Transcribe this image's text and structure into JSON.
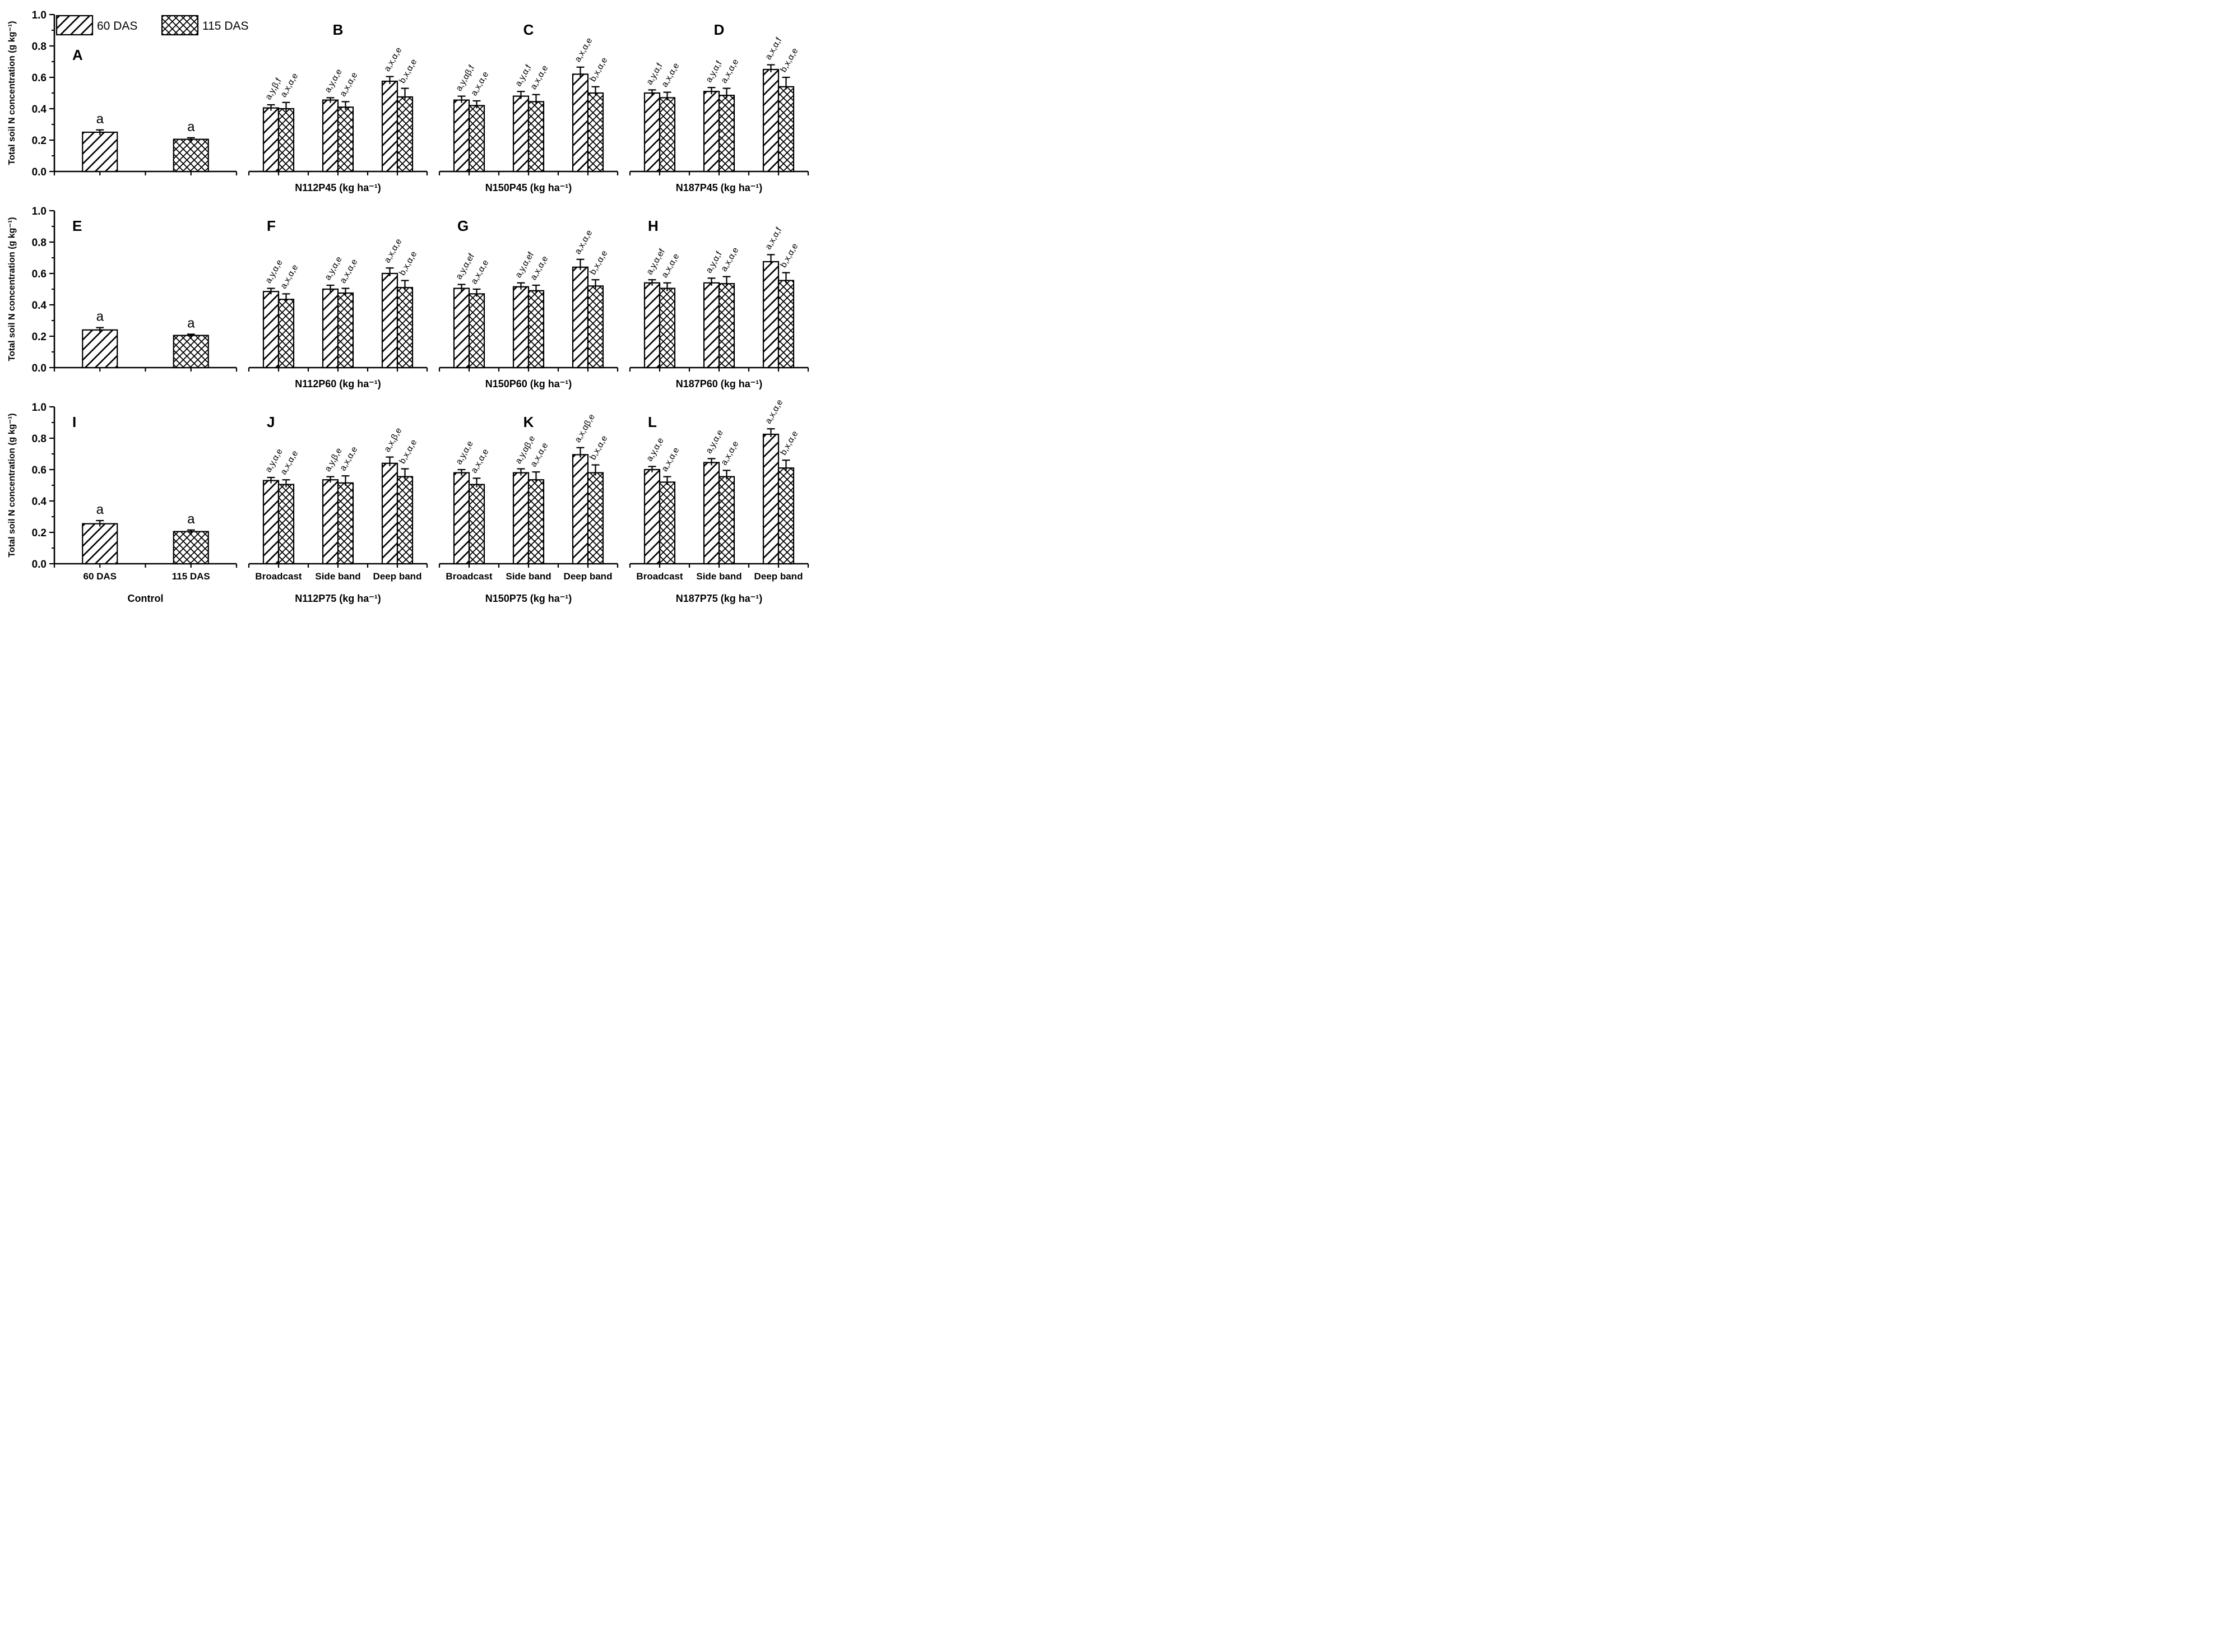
{
  "figure": {
    "ylabel": "Total soil N concentration (g kg⁻¹)",
    "ink_color": "#000000",
    "bg_color": "#ffffff",
    "yaxis": {
      "tick_labels": [
        "0.0",
        "0.2",
        "0.4",
        "0.6",
        "0.8",
        "1.0"
      ],
      "tick_values": [
        0,
        0.2,
        0.4,
        0.6,
        0.8,
        1.0
      ],
      "minor_step": 0.1,
      "ymax": 1.0
    },
    "legend": {
      "items": [
        {
          "label": "60 DAS",
          "pattern": "diagonal-hatch"
        },
        {
          "label": "115 DAS",
          "pattern": "cross-hatch"
        }
      ]
    },
    "series_names": [
      "60 DAS",
      "115 DAS"
    ]
  },
  "chart_data": [
    {
      "type": "bar",
      "letter": "A",
      "letter_align": "left",
      "letter_dy": 45,
      "y_axis": true,
      "tick_labels": false,
      "xlabel": null,
      "legend": true,
      "ylim": [
        0,
        1
      ],
      "groups": [
        {
          "label": "60 DAS",
          "bars": [
            {
              "series": "60 DAS",
              "value": 0.25,
              "error": 0.015,
              "annotation": "a"
            }
          ]
        },
        {
          "label": "115 DAS",
          "bars": [
            {
              "series": "115 DAS",
              "value": 0.205,
              "error": 0.01,
              "annotation": "a"
            }
          ]
        }
      ]
    },
    {
      "type": "bar",
      "letter": "B",
      "letter_align": "center",
      "letter_dy": 0,
      "y_axis": false,
      "tick_labels": false,
      "xlabel": "N112P45 (kg ha⁻¹)",
      "legend": false,
      "ylim": [
        0,
        1
      ],
      "groups": [
        {
          "label": "Broadcast",
          "bars": [
            {
              "series": "60 DAS",
              "value": 0.405,
              "error": 0.02,
              "annotation": "a,y,β,f"
            },
            {
              "series": "115 DAS",
              "value": 0.4,
              "error": 0.04,
              "annotation": "a,x,α,e"
            }
          ]
        },
        {
          "label": "Side band",
          "bars": [
            {
              "series": "60 DAS",
              "value": 0.455,
              "error": 0.015,
              "annotation": "a,y,α,e"
            },
            {
              "series": "115 DAS",
              "value": 0.41,
              "error": 0.035,
              "annotation": "a,x,α,e"
            }
          ]
        },
        {
          "label": "Deep band",
          "bars": [
            {
              "series": "60 DAS",
              "value": 0.575,
              "error": 0.03,
              "annotation": "a,x,α,e"
            },
            {
              "series": "115 DAS",
              "value": 0.475,
              "error": 0.055,
              "annotation": "b,x,α,e"
            }
          ]
        }
      ]
    },
    {
      "type": "bar",
      "letter": "C",
      "letter_align": "center",
      "letter_dy": 0,
      "y_axis": false,
      "tick_labels": false,
      "xlabel": "N150P45 (kg ha⁻¹)",
      "legend": false,
      "ylim": [
        0,
        1
      ],
      "groups": [
        {
          "label": "Broadcast",
          "bars": [
            {
              "series": "60 DAS",
              "value": 0.455,
              "error": 0.025,
              "annotation": "a,y,αβ,f"
            },
            {
              "series": "115 DAS",
              "value": 0.42,
              "error": 0.03,
              "annotation": "a,x,α,e"
            }
          ]
        },
        {
          "label": "Side band",
          "bars": [
            {
              "series": "60 DAS",
              "value": 0.48,
              "error": 0.03,
              "annotation": "a,y,α,f"
            },
            {
              "series": "115 DAS",
              "value": 0.445,
              "error": 0.045,
              "annotation": "a,x,α,e"
            }
          ]
        },
        {
          "label": "Deep band",
          "bars": [
            {
              "series": "60 DAS",
              "value": 0.62,
              "error": 0.045,
              "annotation": "a,x,α,e"
            },
            {
              "series": "115 DAS",
              "value": 0.5,
              "error": 0.04,
              "annotation": "b,x,α,e"
            }
          ]
        }
      ]
    },
    {
      "type": "bar",
      "letter": "D",
      "letter_align": "center",
      "letter_dy": 0,
      "y_axis": false,
      "tick_labels": false,
      "xlabel": "N187P45 (kg ha⁻¹)",
      "legend": false,
      "ylim": [
        0,
        1
      ],
      "groups": [
        {
          "label": "Broadcast",
          "bars": [
            {
              "series": "60 DAS",
              "value": 0.5,
              "error": 0.02,
              "annotation": "a,y,α,f"
            },
            {
              "series": "115 DAS",
              "value": 0.47,
              "error": 0.035,
              "annotation": "a,x,α,e"
            }
          ]
        },
        {
          "label": "Side band",
          "bars": [
            {
              "series": "60 DAS",
              "value": 0.51,
              "error": 0.025,
              "annotation": "a,y,α,f"
            },
            {
              "series": "115 DAS",
              "value": 0.485,
              "error": 0.045,
              "annotation": "a,x,α,e"
            }
          ]
        },
        {
          "label": "Deep band",
          "bars": [
            {
              "series": "60 DAS",
              "value": 0.65,
              "error": 0.03,
              "annotation": "a,x,α,f"
            },
            {
              "series": "115 DAS",
              "value": 0.54,
              "error": 0.06,
              "annotation": "b,x,α,e"
            }
          ]
        }
      ]
    },
    {
      "type": "bar",
      "letter": "E",
      "letter_align": "left",
      "letter_dy": 0,
      "y_axis": true,
      "tick_labels": false,
      "xlabel": null,
      "legend": false,
      "ylim": [
        0,
        1
      ],
      "groups": [
        {
          "label": "60 DAS",
          "bars": [
            {
              "series": "60 DAS",
              "value": 0.24,
              "error": 0.015,
              "annotation": "a"
            }
          ]
        },
        {
          "label": "115 DAS",
          "bars": [
            {
              "series": "115 DAS",
              "value": 0.205,
              "error": 0.008,
              "annotation": "a"
            }
          ]
        }
      ]
    },
    {
      "type": "bar",
      "letter": "F",
      "letter_align": "left",
      "letter_dy": 0,
      "y_axis": false,
      "tick_labels": false,
      "xlabel": "N112P60 (kg ha⁻¹)",
      "legend": false,
      "ylim": [
        0,
        1
      ],
      "groups": [
        {
          "label": "Broadcast",
          "bars": [
            {
              "series": "60 DAS",
              "value": 0.485,
              "error": 0.02,
              "annotation": "a,y,α,e"
            },
            {
              "series": "115 DAS",
              "value": 0.435,
              "error": 0.035,
              "annotation": "a,x,α,e"
            }
          ]
        },
        {
          "label": "Side band",
          "bars": [
            {
              "series": "60 DAS",
              "value": 0.5,
              "error": 0.025,
              "annotation": "a,y,α,e"
            },
            {
              "series": "115 DAS",
              "value": 0.475,
              "error": 0.03,
              "annotation": "a,x,α,e"
            }
          ]
        },
        {
          "label": "Deep band",
          "bars": [
            {
              "series": "60 DAS",
              "value": 0.6,
              "error": 0.035,
              "annotation": "a,x,α,e"
            },
            {
              "series": "115 DAS",
              "value": 0.51,
              "error": 0.045,
              "annotation": "b,x,α,e"
            }
          ]
        }
      ]
    },
    {
      "type": "bar",
      "letter": "G",
      "letter_align": "left",
      "letter_dy": 0,
      "y_axis": false,
      "tick_labels": false,
      "xlabel": "N150P60 (kg ha⁻¹)",
      "legend": false,
      "ylim": [
        0,
        1
      ],
      "groups": [
        {
          "label": "Broadcast",
          "bars": [
            {
              "series": "60 DAS",
              "value": 0.505,
              "error": 0.025,
              "annotation": "a,y,α,ef"
            },
            {
              "series": "115 DAS",
              "value": 0.47,
              "error": 0.03,
              "annotation": "a,x,α,e"
            }
          ]
        },
        {
          "label": "Side band",
          "bars": [
            {
              "series": "60 DAS",
              "value": 0.515,
              "error": 0.025,
              "annotation": "a,y,α,ef"
            },
            {
              "series": "115 DAS",
              "value": 0.49,
              "error": 0.035,
              "annotation": "a,x,α,e"
            }
          ]
        },
        {
          "label": "Deep band",
          "bars": [
            {
              "series": "60 DAS",
              "value": 0.64,
              "error": 0.05,
              "annotation": "a,x,α,e"
            },
            {
              "series": "115 DAS",
              "value": 0.52,
              "error": 0.04,
              "annotation": "b,x,α,e"
            }
          ]
        }
      ]
    },
    {
      "type": "bar",
      "letter": "H",
      "letter_align": "left",
      "letter_dy": 0,
      "y_axis": false,
      "tick_labels": false,
      "xlabel": "N187P60 (kg ha⁻¹)",
      "legend": false,
      "ylim": [
        0,
        1
      ],
      "groups": [
        {
          "label": "Broadcast",
          "bars": [
            {
              "series": "60 DAS",
              "value": 0.54,
              "error": 0.02,
              "annotation": "a,y,α,ef"
            },
            {
              "series": "115 DAS",
              "value": 0.505,
              "error": 0.035,
              "annotation": "a,x,α,e"
            }
          ]
        },
        {
          "label": "Side band",
          "bars": [
            {
              "series": "60 DAS",
              "value": 0.54,
              "error": 0.03,
              "annotation": "a,y,α,f"
            },
            {
              "series": "115 DAS",
              "value": 0.535,
              "error": 0.045,
              "annotation": "a,x,α,e"
            }
          ]
        },
        {
          "label": "Deep band",
          "bars": [
            {
              "series": "60 DAS",
              "value": 0.675,
              "error": 0.045,
              "annotation": "a,x,α,f"
            },
            {
              "series": "115 DAS",
              "value": 0.555,
              "error": 0.05,
              "annotation": "b,x,α,e"
            }
          ]
        }
      ]
    },
    {
      "type": "bar",
      "letter": "I",
      "letter_align": "left",
      "letter_dy": 0,
      "y_axis": true,
      "tick_labels": true,
      "xlabel": "Control",
      "legend": false,
      "ylim": [
        0,
        1
      ],
      "groups": [
        {
          "label": "60 DAS",
          "bars": [
            {
              "series": "60 DAS",
              "value": 0.255,
              "error": 0.02,
              "annotation": "a"
            }
          ]
        },
        {
          "label": "115 DAS",
          "bars": [
            {
              "series": "115 DAS",
              "value": 0.205,
              "error": 0.01,
              "annotation": "a"
            }
          ]
        }
      ]
    },
    {
      "type": "bar",
      "letter": "J",
      "letter_align": "left",
      "letter_dy": 0,
      "y_axis": false,
      "tick_labels": true,
      "xlabel": "N112P75 (kg ha⁻¹)",
      "legend": false,
      "ylim": [
        0,
        1
      ],
      "groups": [
        {
          "label": "Broadcast",
          "bars": [
            {
              "series": "60 DAS",
              "value": 0.53,
              "error": 0.02,
              "annotation": "a,y,α,e"
            },
            {
              "series": "115 DAS",
              "value": 0.505,
              "error": 0.03,
              "annotation": "a,x,α,e"
            }
          ]
        },
        {
          "label": "Side band",
          "bars": [
            {
              "series": "60 DAS",
              "value": 0.535,
              "error": 0.02,
              "annotation": "a,y,β,e"
            },
            {
              "series": "115 DAS",
              "value": 0.515,
              "error": 0.045,
              "annotation": "a,x,α,e"
            }
          ]
        },
        {
          "label": "Deep band",
          "bars": [
            {
              "series": "60 DAS",
              "value": 0.64,
              "error": 0.04,
              "annotation": "a,x,β,e"
            },
            {
              "series": "115 DAS",
              "value": 0.555,
              "error": 0.05,
              "annotation": "b,x,α,e"
            }
          ]
        }
      ]
    },
    {
      "type": "bar",
      "letter": "K",
      "letter_align": "center",
      "letter_dy": 0,
      "y_axis": false,
      "tick_labels": true,
      "xlabel": "N150P75 (kg ha⁻¹)",
      "legend": false,
      "ylim": [
        0,
        1
      ],
      "groups": [
        {
          "label": "Broadcast",
          "bars": [
            {
              "series": "60 DAS",
              "value": 0.58,
              "error": 0.02,
              "annotation": "a,y,α,e"
            },
            {
              "series": "115 DAS",
              "value": 0.505,
              "error": 0.04,
              "annotation": "a,x,α,e"
            }
          ]
        },
        {
          "label": "Side band",
          "bars": [
            {
              "series": "60 DAS",
              "value": 0.58,
              "error": 0.025,
              "annotation": "a,y,αβ,e"
            },
            {
              "series": "115 DAS",
              "value": 0.535,
              "error": 0.05,
              "annotation": "a,x,α,e"
            }
          ]
        },
        {
          "label": "Deep band",
          "bars": [
            {
              "series": "60 DAS",
              "value": 0.695,
              "error": 0.045,
              "annotation": "a,x,αβ,e"
            },
            {
              "series": "115 DAS",
              "value": 0.58,
              "error": 0.05,
              "annotation": "b,x,α,e"
            }
          ]
        }
      ]
    },
    {
      "type": "bar",
      "letter": "L",
      "letter_align": "left",
      "letter_dy": 0,
      "y_axis": false,
      "tick_labels": true,
      "xlabel": "N187P75 (kg ha⁻¹)",
      "legend": false,
      "ylim": [
        0,
        1
      ],
      "groups": [
        {
          "label": "Broadcast",
          "bars": [
            {
              "series": "60 DAS",
              "value": 0.6,
              "error": 0.02,
              "annotation": "a,y,α,e"
            },
            {
              "series": "115 DAS",
              "value": 0.52,
              "error": 0.035,
              "annotation": "a,x,α,e"
            }
          ]
        },
        {
          "label": "Side band",
          "bars": [
            {
              "series": "60 DAS",
              "value": 0.645,
              "error": 0.025,
              "annotation": "a,y,α,e"
            },
            {
              "series": "115 DAS",
              "value": 0.555,
              "error": 0.04,
              "annotation": "a,x,α,e"
            }
          ]
        },
        {
          "label": "Deep band",
          "bars": [
            {
              "series": "60 DAS",
              "value": 0.825,
              "error": 0.035,
              "annotation": "a,x,α,e"
            },
            {
              "series": "115 DAS",
              "value": 0.61,
              "error": 0.05,
              "annotation": "b,x,α,e"
            }
          ]
        }
      ]
    }
  ]
}
